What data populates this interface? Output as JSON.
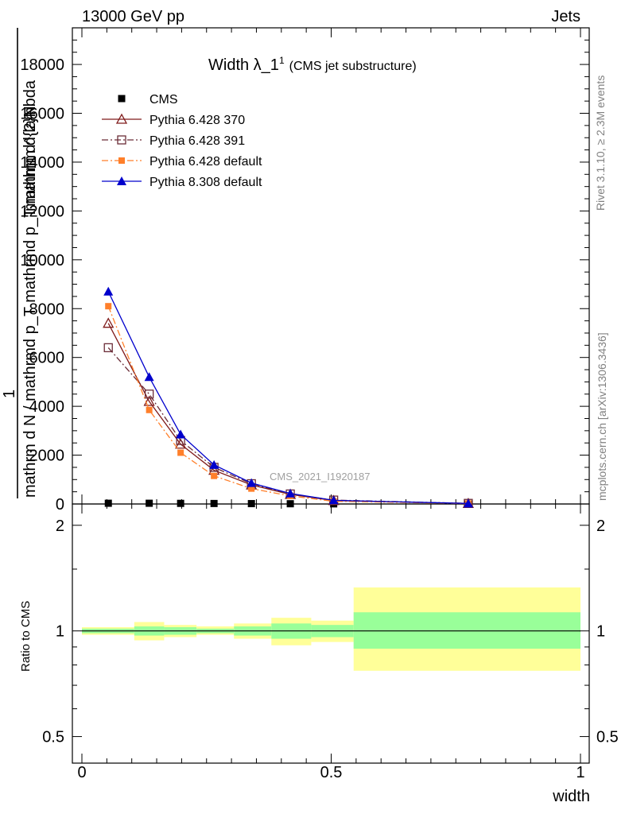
{
  "header": {
    "left": "13000 GeV pp",
    "right": "Jets"
  },
  "side_labels": {
    "rivet": "Rivet 3.1.10, ≥ 2.3M events",
    "mcplots": "mcplots.cern.ch [arXiv:1306.3436]"
  },
  "watermark": "CMS_2021_I1920187",
  "ratio_ylabel": "Ratio to CMS",
  "colors": {
    "cms": "#000000",
    "p370": "#7f1a1a",
    "p391": "#6b2c37",
    "pdef": "#ff7f2a",
    "p8": "#0000cc",
    "band_inner": "#99ff99",
    "band_outer": "#ffff99"
  },
  "chart_data": {
    "type": "line",
    "title": "Width λ_1",
    "title_sup": "1",
    "title_sub": "(CMS jet substructure)",
    "xlabel": "width",
    "ylabel_top": "1",
    "ylabel_num": "mathrm d^{2}N",
    "ylabel_den": "mathrm d N / mathrmd p_T mathrmd p_T mathrm d lambda",
    "xlim": [
      -0.02,
      1.0
    ],
    "ylim": [
      0,
      19500
    ],
    "yticks": [
      0,
      2000,
      4000,
      6000,
      8000,
      10000,
      12000,
      14000,
      16000,
      18000
    ],
    "ytick_labels": [
      "0",
      "2000",
      "4000",
      "6000",
      "8000",
      "10000",
      "12000",
      "14000",
      "16000",
      "18000"
    ],
    "xticks": [
      0,
      0.5,
      1
    ],
    "xtick_labels": [
      "0",
      "0.5",
      "1"
    ],
    "legend": [
      "CMS",
      "Pythia 6.428 370",
      "Pythia 6.428 391",
      "Pythia 6.428 default",
      "Pythia 8.308 default"
    ],
    "legend_position": "top-left",
    "x": [
      0.053,
      0.135,
      0.198,
      0.265,
      0.34,
      0.418,
      0.505,
      0.775
    ],
    "series": [
      {
        "name": "CMS",
        "values": [
          30,
          30,
          25,
          20,
          15,
          10,
          5,
          2
        ]
      },
      {
        "name": "Pythia 6.428 370",
        "values": [
          7400,
          4200,
          2450,
          1380,
          780,
          390,
          140,
          20
        ]
      },
      {
        "name": "Pythia 6.428 391",
        "values": [
          6400,
          4500,
          2600,
          1500,
          830,
          410,
          160,
          25
        ]
      },
      {
        "name": "Pythia 6.428 default",
        "values": [
          8100,
          3850,
          2100,
          1150,
          630,
          330,
          110,
          18
        ]
      },
      {
        "name": "Pythia 8.308 default",
        "values": [
          8700,
          5200,
          2850,
          1600,
          860,
          430,
          150,
          22
        ]
      }
    ],
    "ratio": {
      "ylim": [
        0.42,
        2.3
      ],
      "log": true,
      "yticks": [
        0.5,
        1,
        2
      ],
      "ytick_labels": [
        "0.5",
        "1",
        "2"
      ],
      "bins": [
        {
          "lo": 0.0,
          "hi": 0.105,
          "inner": [
            0.985,
            1.015
          ],
          "outer": [
            0.975,
            1.025
          ]
        },
        {
          "lo": 0.105,
          "hi": 0.165,
          "inner": [
            0.97,
            1.03
          ],
          "outer": [
            0.94,
            1.06
          ]
        },
        {
          "lo": 0.165,
          "hi": 0.23,
          "inner": [
            0.975,
            1.025
          ],
          "outer": [
            0.96,
            1.04
          ]
        },
        {
          "lo": 0.23,
          "hi": 0.305,
          "inner": [
            0.985,
            1.015
          ],
          "outer": [
            0.975,
            1.03
          ]
        },
        {
          "lo": 0.305,
          "hi": 0.38,
          "inner": [
            0.97,
            1.03
          ],
          "outer": [
            0.95,
            1.05
          ]
        },
        {
          "lo": 0.38,
          "hi": 0.46,
          "inner": [
            0.95,
            1.05
          ],
          "outer": [
            0.91,
            1.09
          ]
        },
        {
          "lo": 0.46,
          "hi": 0.545,
          "inner": [
            0.96,
            1.04
          ],
          "outer": [
            0.93,
            1.07
          ]
        },
        {
          "lo": 0.545,
          "hi": 1.0,
          "inner": [
            0.89,
            1.13
          ],
          "outer": [
            0.77,
            1.33
          ]
        }
      ]
    }
  }
}
